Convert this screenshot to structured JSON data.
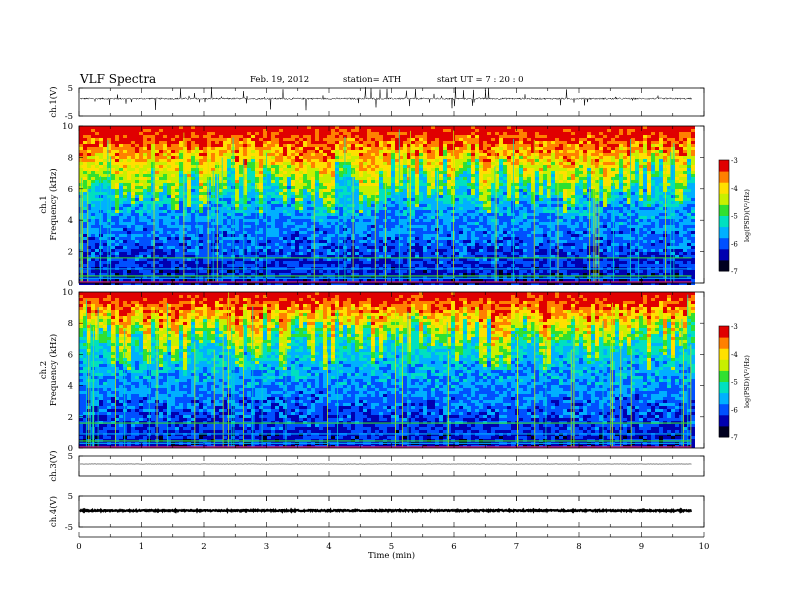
{
  "header": {
    "title": "VLF  Spectra",
    "date": "Feb. 19, 2012",
    "station": "station= ATH",
    "start": "start  UT  =   7  : 20 : 0"
  },
  "chart_data": {
    "type": "heatmap",
    "title": "VLF  Spectra",
    "xlabel": "Time  (min)",
    "xlim": [
      0,
      10
    ],
    "xticks": [
      "0",
      "1",
      "2",
      "3",
      "4",
      "5",
      "6",
      "7",
      "8",
      "9",
      "10"
    ],
    "data_end_min": 9.8,
    "panels": [
      {
        "id": "ch1-waveform",
        "type": "line",
        "ylabel": "ch.1(V)",
        "ylim": [
          -5,
          5
        ],
        "yticks": [
          "5",
          "-5"
        ],
        "baseline_v": 1.2
      },
      {
        "id": "ch1-spectrogram",
        "type": "heatmap",
        "ylabel": "ch.1\nFrequency  (kHz)",
        "ylim": [
          0,
          10
        ],
        "yticks": [
          "0",
          "2",
          "4",
          "6",
          "8",
          "10"
        ],
        "colorbar": {
          "label": "log(PSD)(V²/Hz)",
          "range": [
            -7,
            -3
          ],
          "ticks": [
            "-3",
            "-4",
            "-5",
            "-6",
            "-7"
          ]
        }
      },
      {
        "id": "ch2-spectrogram",
        "type": "heatmap",
        "ylabel": "ch.2\nFrequency  (kHz)",
        "ylim": [
          0,
          10
        ],
        "yticks": [
          "0",
          "2",
          "4",
          "6",
          "8",
          "10"
        ],
        "colorbar": {
          "label": "log(PSD)(V²/Hz)",
          "range": [
            -7,
            -3
          ],
          "ticks": [
            "-3",
            "-4",
            "-5",
            "-6",
            "-7"
          ]
        }
      },
      {
        "id": "ch3-waveform",
        "type": "line",
        "ylabel": "ch.3(V)",
        "ylim": [
          -5,
          5
        ],
        "yticks": [
          "5"
        ],
        "baseline_v": 1.0
      },
      {
        "id": "ch4-waveform",
        "type": "line",
        "ylabel": "ch.4(V)",
        "ylim": [
          -5,
          5
        ],
        "yticks": [
          "5",
          "-5"
        ],
        "baseline_v": 0.3
      }
    ]
  },
  "colors": {
    "colormap": [
      "#000020",
      "#0000b0",
      "#0050ff",
      "#00b0ff",
      "#00e0c0",
      "#30e030",
      "#c8f000",
      "#ffe000",
      "#ff8000",
      "#e00000"
    ]
  }
}
